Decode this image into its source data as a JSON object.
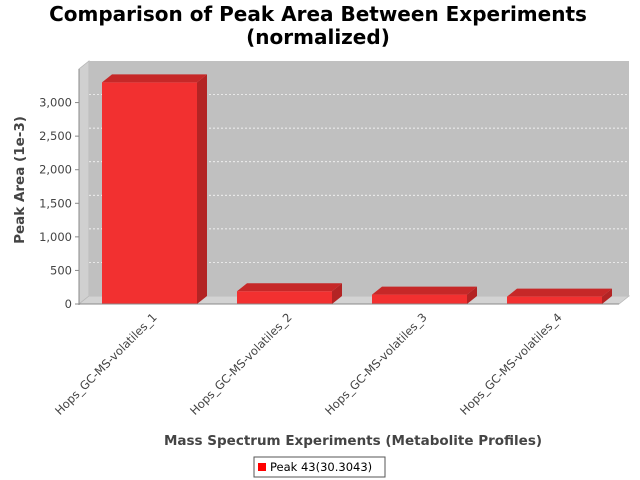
{
  "chart_data": {
    "type": "bar",
    "title_line1": "Comparison of Peak Area Between Experiments",
    "title_line2": "(normalized)",
    "xlabel": "Mass Spectrum Experiments (Metabolite Profiles)",
    "ylabel": "Peak Area (1e-3)",
    "categories": [
      "Hops_GC-MS-volatiles_1",
      "Hops_GC-MS-volatiles_2",
      "Hops_GC-MS-volatiles_3",
      "Hops_GC-MS-volatiles_4"
    ],
    "series": [
      {
        "name": "Peak 43(30.3043)",
        "values": [
          3300,
          190,
          140,
          110
        ],
        "color": "#f23030"
      }
    ],
    "ylim": [
      0,
      3500
    ],
    "yticks": [
      0,
      500,
      1000,
      1500,
      2000,
      2500,
      3000
    ],
    "ytick_labels": [
      "0",
      "500",
      "1,000",
      "1,500",
      "2,000",
      "2,500",
      "3,000"
    ],
    "grid": true,
    "legend_position": "bottom",
    "colors": {
      "plot_background": "#c0c0c0",
      "bar": "#f23030",
      "bar_side": "#b32424",
      "bar_top": "#c62828"
    }
  }
}
